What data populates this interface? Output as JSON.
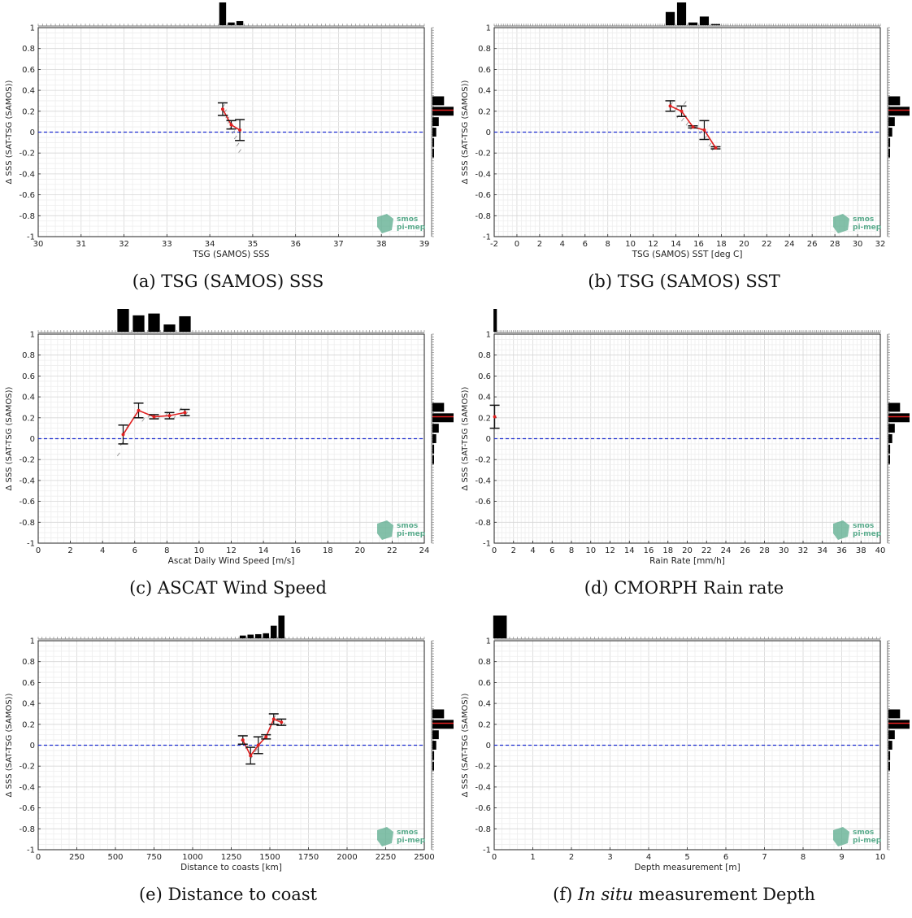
{
  "logo": {
    "line1": "smos",
    "line2": "pi-mep",
    "color": "#5aab8c"
  },
  "colors": {
    "zero_line": "#1f2fd0",
    "mean_line": "#e02020",
    "error_bar": "#111111",
    "scatter": "#9a9a9a",
    "hist": "#000000",
    "hist_mark": "#e02020"
  },
  "ylabel": "Δ SSS (SAT-TSG (SAMOS))",
  "chart_data": [
    {
      "id": "a",
      "type": "line",
      "caption_label": "(a)",
      "caption_text": "TSG (SAMOS) SSS",
      "caption_emph": "",
      "xlabel": "TSG (SAMOS) SSS",
      "xlim": [
        30,
        39
      ],
      "xticks": [
        "30",
        "31",
        "32",
        "33",
        "34",
        "35",
        "36",
        "37",
        "38",
        "39"
      ],
      "ylim": [
        -1,
        1
      ],
      "yticks": [
        "-1",
        "-0.8",
        "-0.6",
        "-0.4",
        "-0.2",
        "0",
        "0.2",
        "0.4",
        "0.6",
        "0.8",
        "1"
      ],
      "grid": true,
      "zero_line": 0,
      "series": [
        {
          "x": [
            34.3,
            34.5,
            34.7
          ],
          "y": [
            0.22,
            0.07,
            0.02
          ],
          "err": [
            0.06,
            0.04,
            0.1
          ]
        }
      ],
      "scatter": [
        [
          34.32,
          0.25
        ],
        [
          34.36,
          0.2
        ],
        [
          34.4,
          0.15
        ],
        [
          34.45,
          0.1
        ],
        [
          34.5,
          0.05
        ],
        [
          34.55,
          0.0
        ],
        [
          34.6,
          -0.05
        ],
        [
          34.65,
          -0.12
        ],
        [
          34.7,
          -0.18
        ],
        [
          34.42,
          0.13
        ],
        [
          34.48,
          0.04
        ]
      ],
      "hist_top": [
        {
          "x": 34.3,
          "h": 1.0
        },
        {
          "x": 34.5,
          "h": 0.12
        },
        {
          "x": 34.7,
          "h": 0.18
        }
      ],
      "hist_top_width": 0.16,
      "hist_right": [
        {
          "y": 0.3,
          "w": 0.55
        },
        {
          "y": 0.2,
          "w": 1.0
        },
        {
          "y": 0.1,
          "w": 0.3
        },
        {
          "y": 0.0,
          "w": 0.18
        },
        {
          "y": -0.1,
          "w": 0.08
        },
        {
          "y": -0.2,
          "w": 0.06
        }
      ],
      "hist_right_mean": 0.21
    },
    {
      "id": "b",
      "type": "line",
      "caption_label": "(b)",
      "caption_text": "TSG (SAMOS) SST",
      "caption_emph": "",
      "xlabel": "TSG (SAMOS) SST [deg C]",
      "xlim": [
        -2,
        32
      ],
      "xticks": [
        "-2",
        "0",
        "2",
        "4",
        "6",
        "8",
        "10",
        "12",
        "14",
        "16",
        "18",
        "20",
        "22",
        "24",
        "26",
        "28",
        "30",
        "32"
      ],
      "ylim": [
        -1,
        1
      ],
      "yticks": [
        "-1",
        "-0.8",
        "-0.6",
        "-0.4",
        "-0.2",
        "0",
        "0.2",
        "0.4",
        "0.6",
        "0.8",
        "1"
      ],
      "grid": true,
      "zero_line": 0,
      "series": [
        {
          "x": [
            13.5,
            14.5,
            15.5,
            16.5,
            17.5
          ],
          "y": [
            0.25,
            0.2,
            0.05,
            0.02,
            -0.15
          ],
          "err": [
            0.05,
            0.05,
            0.01,
            0.09,
            0.01
          ]
        }
      ],
      "scatter": [
        [
          13.6,
          0.27
        ],
        [
          14.0,
          0.22
        ],
        [
          14.2,
          0.15
        ],
        [
          14.6,
          0.12
        ],
        [
          15.0,
          0.08
        ],
        [
          15.4,
          0.04
        ],
        [
          16.2,
          0.0
        ],
        [
          16.6,
          -0.05
        ],
        [
          17.0,
          -0.12
        ],
        [
          17.3,
          -0.16
        ],
        [
          14.8,
          0.28
        ]
      ],
      "hist_top": [
        {
          "x": 13.5,
          "h": 0.58
        },
        {
          "x": 14.5,
          "h": 1.0
        },
        {
          "x": 15.5,
          "h": 0.12
        },
        {
          "x": 16.5,
          "h": 0.38
        },
        {
          "x": 17.5,
          "h": 0.05
        }
      ],
      "hist_top_width": 0.8,
      "hist_right": [
        {
          "y": 0.3,
          "w": 0.55
        },
        {
          "y": 0.2,
          "w": 1.0
        },
        {
          "y": 0.1,
          "w": 0.3
        },
        {
          "y": 0.0,
          "w": 0.18
        },
        {
          "y": -0.1,
          "w": 0.08
        },
        {
          "y": -0.2,
          "w": 0.06
        }
      ],
      "hist_right_mean": 0.21
    },
    {
      "id": "c",
      "type": "line",
      "caption_label": "(c)",
      "caption_text": "ASCAT Wind Speed",
      "caption_emph": "",
      "xlabel": "Ascat Daily Wind Speed [m/s]",
      "xlim": [
        0,
        25
      ],
      "xticks": [
        "0",
        "2",
        "4",
        "6",
        "8",
        "10",
        "12",
        "14",
        "16",
        "18",
        "20",
        "22",
        "24"
      ],
      "ylim": [
        -1,
        1
      ],
      "yticks": [
        "-1",
        "-0.8",
        "-0.6",
        "-0.4",
        "-0.2",
        "0",
        "0.2",
        "0.4",
        "0.6",
        "0.8",
        "1"
      ],
      "grid": true,
      "zero_line": 0,
      "series": [
        {
          "x": [
            5.5,
            6.5,
            7.5,
            8.5,
            9.5
          ],
          "y": [
            0.04,
            0.27,
            0.21,
            0.22,
            0.25
          ],
          "err": [
            0.09,
            0.07,
            0.02,
            0.03,
            0.03
          ]
        }
      ],
      "scatter": [
        [
          5.2,
          -0.15
        ],
        [
          5.4,
          -0.05
        ],
        [
          5.6,
          0.06
        ],
        [
          5.8,
          0.12
        ],
        [
          6.2,
          0.2
        ],
        [
          6.8,
          0.18
        ],
        [
          7.2,
          0.22
        ],
        [
          7.8,
          0.2
        ],
        [
          8.3,
          0.23
        ],
        [
          8.8,
          0.2
        ],
        [
          9.2,
          0.28
        ],
        [
          9.6,
          0.24
        ]
      ],
      "hist_top": [
        {
          "x": 5.5,
          "h": 1.0
        },
        {
          "x": 6.5,
          "h": 0.72
        },
        {
          "x": 7.5,
          "h": 0.8
        },
        {
          "x": 8.5,
          "h": 0.32
        },
        {
          "x": 9.5,
          "h": 0.68
        }
      ],
      "hist_top_width": 0.75,
      "hist_right": [
        {
          "y": 0.3,
          "w": 0.55
        },
        {
          "y": 0.2,
          "w": 1.0
        },
        {
          "y": 0.1,
          "w": 0.3
        },
        {
          "y": 0.0,
          "w": 0.18
        },
        {
          "y": -0.1,
          "w": 0.08
        },
        {
          "y": -0.2,
          "w": 0.06
        }
      ],
      "hist_right_mean": 0.21
    },
    {
      "id": "d",
      "type": "line",
      "caption_label": "(d)",
      "caption_text": "CMORPH Rain rate",
      "caption_emph": "",
      "xlabel": "Rain Rate [mm/h]",
      "xlim": [
        0,
        40
      ],
      "xticks": [
        "0",
        "2",
        "4",
        "6",
        "8",
        "10",
        "12",
        "14",
        "16",
        "18",
        "20",
        "22",
        "24",
        "26",
        "28",
        "30",
        "32",
        "34",
        "36",
        "38",
        "40"
      ],
      "ylim": [
        -1,
        1
      ],
      "yticks": [
        "-1",
        "-0.8",
        "-0.6",
        "-0.4",
        "-0.2",
        "0",
        "0.2",
        "0.4",
        "0.6",
        "0.8",
        "1"
      ],
      "grid": true,
      "zero_line": 0,
      "series": [
        {
          "x": [
            0.05
          ],
          "y": [
            0.21
          ],
          "err": [
            0.11
          ]
        }
      ],
      "scatter": [],
      "hist_top": [
        {
          "x": 0.1,
          "h": 1.0
        }
      ],
      "hist_top_width": 0.35,
      "hist_right": [
        {
          "y": 0.3,
          "w": 0.55
        },
        {
          "y": 0.2,
          "w": 1.0
        },
        {
          "y": 0.1,
          "w": 0.3
        },
        {
          "y": 0.0,
          "w": 0.18
        },
        {
          "y": -0.1,
          "w": 0.08
        },
        {
          "y": -0.2,
          "w": 0.06
        }
      ],
      "hist_right_mean": 0.21
    },
    {
      "id": "e",
      "type": "line",
      "caption_label": "(e)",
      "caption_text": "Distance to coast",
      "caption_emph": "",
      "xlabel": "Distance to coasts [km]",
      "xlim": [
        0,
        2500
      ],
      "xticks": [
        "0",
        "250",
        "500",
        "750",
        "1000",
        "1250",
        "1500",
        "1750",
        "2000",
        "2250",
        "2500"
      ],
      "ylim": [
        -1,
        1
      ],
      "yticks": [
        "-1",
        "-0.8",
        "-0.6",
        "-0.4",
        "-0.2",
        "0",
        "0.2",
        "0.4",
        "0.6",
        "0.8",
        "1"
      ],
      "grid": true,
      "zero_line": 0,
      "series": [
        {
          "x": [
            1325,
            1375,
            1425,
            1475,
            1525,
            1575
          ],
          "y": [
            0.05,
            -0.1,
            0.0,
            0.08,
            0.25,
            0.22
          ],
          "err": [
            0.04,
            0.08,
            0.08,
            0.02,
            0.05,
            0.03
          ]
        }
      ],
      "scatter": [
        [
          1320,
          0.06
        ],
        [
          1350,
          -0.02
        ],
        [
          1380,
          -0.12
        ],
        [
          1410,
          -0.05
        ],
        [
          1440,
          0.02
        ],
        [
          1470,
          0.07
        ],
        [
          1500,
          0.15
        ],
        [
          1530,
          0.27
        ],
        [
          1560,
          0.24
        ],
        [
          1590,
          0.2
        ]
      ],
      "hist_top": [
        {
          "x": 1325,
          "h": 0.12
        },
        {
          "x": 1375,
          "h": 0.16
        },
        {
          "x": 1425,
          "h": 0.18
        },
        {
          "x": 1475,
          "h": 0.22
        },
        {
          "x": 1525,
          "h": 0.55
        },
        {
          "x": 1575,
          "h": 1.0
        }
      ],
      "hist_top_width": 40,
      "hist_right": [
        {
          "y": 0.3,
          "w": 0.55
        },
        {
          "y": 0.2,
          "w": 1.0
        },
        {
          "y": 0.1,
          "w": 0.3
        },
        {
          "y": 0.0,
          "w": 0.18
        },
        {
          "y": -0.1,
          "w": 0.08
        },
        {
          "y": -0.2,
          "w": 0.06
        }
      ],
      "hist_right_mean": 0.21
    },
    {
      "id": "f",
      "type": "line",
      "caption_label": "(f)",
      "caption_text": " measurement Depth",
      "caption_emph": "In situ",
      "xlabel": "Depth measurement [m]",
      "xlim": [
        0,
        10
      ],
      "xticks": [
        "0",
        "1",
        "2",
        "3",
        "4",
        "5",
        "6",
        "7",
        "8",
        "9",
        "10"
      ],
      "ylim": [
        -1,
        1
      ],
      "yticks": [
        "-1",
        "-0.8",
        "-0.6",
        "-0.4",
        "-0.2",
        "0",
        "0.2",
        "0.4",
        "0.6",
        "0.8",
        "1"
      ],
      "grid": true,
      "zero_line": 0,
      "series": [],
      "scatter": [],
      "hist_top": [
        {
          "x": 0.15,
          "h": 1.0
        }
      ],
      "hist_top_width": 0.35,
      "hist_right": [
        {
          "y": 0.3,
          "w": 0.55
        },
        {
          "y": 0.2,
          "w": 1.0
        },
        {
          "y": 0.1,
          "w": 0.3
        },
        {
          "y": 0.0,
          "w": 0.18
        },
        {
          "y": -0.1,
          "w": 0.08
        },
        {
          "y": -0.2,
          "w": 0.06
        }
      ],
      "hist_right_mean": 0.21
    }
  ]
}
